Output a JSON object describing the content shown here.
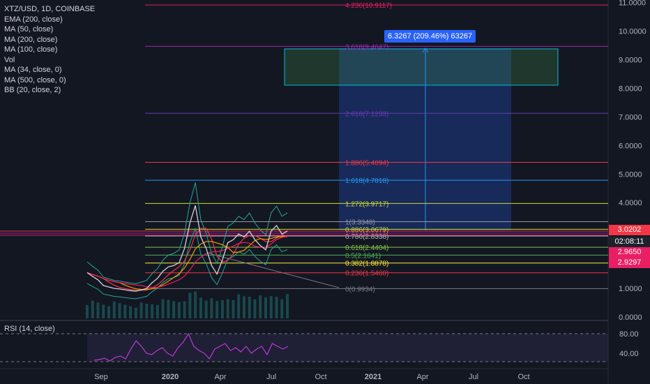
{
  "legend": {
    "symbol": "XTZ/USD, 1D, COINBASE",
    "indicators": [
      "EMA (200, close)",
      "MA (50, close)",
      "MA (200, close)",
      "MA (100, close)",
      "Vol",
      "MA (34, close, 0)",
      "MA (500, close, 0)",
      "BB (20, close, 2)"
    ]
  },
  "rsi_legend": "RSI (14, close)",
  "measure_label": "6.3267 (209.46%) 63267",
  "price_badges": {
    "last": {
      "text": "3.0202",
      "color": "#f23645"
    },
    "countdown": {
      "text": "02:08:11",
      "color": "#1e222d"
    },
    "b1": {
      "text": "2.9650",
      "color": "#e91e63"
    },
    "b2": {
      "text": "2.9297",
      "color": "#e91e63"
    }
  },
  "fib_levels": [
    {
      "label": "4.236(10.9117)",
      "price": 10.9117,
      "color": "#e91e63"
    },
    {
      "label": "3.618(9.4647)",
      "price": 9.4647,
      "color": "#9c27b0"
    },
    {
      "label": "2.618(7.1233)",
      "price": 7.1233,
      "color": "#673ab7"
    },
    {
      "label": "1.886(5.4094)",
      "price": 5.4094,
      "color": "#f23645"
    },
    {
      "label": "1.618(4.7818)",
      "price": 4.7818,
      "color": "#2196f3"
    },
    {
      "label": "1.272(3.9717)",
      "price": 3.9717,
      "color": "#cddc39"
    },
    {
      "label": "1(3.3348)",
      "price": 3.3348,
      "color": "#9598a1"
    },
    {
      "label": "0.886(3.0679)",
      "price": 3.0679,
      "color": "#cddc39"
    },
    {
      "label": "0.786(2.8338)",
      "price": 2.8338,
      "color": "#b2b5be"
    },
    {
      "label": "0.618(2.4404)",
      "price": 2.4404,
      "color": "#8bc34a"
    },
    {
      "label": "0.5(2.1641)",
      "price": 2.1641,
      "color": "#4caf50"
    },
    {
      "label": "0.382(1.8878)",
      "price": 1.8878,
      "color": "#ffeb3b"
    },
    {
      "label": "0.236(1.5460)",
      "price": 1.546,
      "color": "#f23645"
    },
    {
      "label": "0(0.9934)",
      "price": 0.9934,
      "color": "#787b86"
    }
  ],
  "chart_data": {
    "type": "line",
    "x_ticks": [
      "Sep",
      "2020",
      "Apr",
      "Jul",
      "Oct",
      "2021",
      "Apr",
      "Jul",
      "Oct"
    ],
    "y_ticks": [
      "11.0000",
      "10.0000",
      "9.0000",
      "8.0000",
      "7.0000",
      "6.0000",
      "5.0000",
      "4.0000",
      "3.0000",
      "2.0000",
      "1.0000",
      "0.0000"
    ],
    "ylim": [
      0,
      11
    ],
    "series": [
      {
        "values": [
          1.55,
          1.42,
          1.3,
          1.1,
          1.05,
          1.0,
          0.98,
          0.95,
          0.92,
          0.9,
          0.95,
          1.0,
          1.2,
          1.35,
          1.6,
          1.75,
          1.8,
          1.9,
          2.4,
          3.3,
          3.9,
          2.8,
          2.4,
          1.8,
          1.5,
          2.0,
          2.6,
          2.7,
          2.9,
          2.8,
          3.0,
          2.7,
          2.5,
          2.35,
          3.0,
          3.2,
          2.9,
          3.0
        ]
      }
    ],
    "rsi": {
      "levels": [
        "80.00",
        "40.00"
      ],
      "values": [
        42,
        43,
        45,
        41,
        46,
        48,
        44,
        58,
        70,
        62,
        52,
        50,
        56,
        60,
        52,
        48,
        60,
        68,
        80,
        62,
        56,
        52,
        44,
        58,
        62,
        66,
        56,
        60,
        54,
        62,
        52,
        58,
        62,
        50,
        66,
        62,
        58,
        62
      ]
    }
  }
}
